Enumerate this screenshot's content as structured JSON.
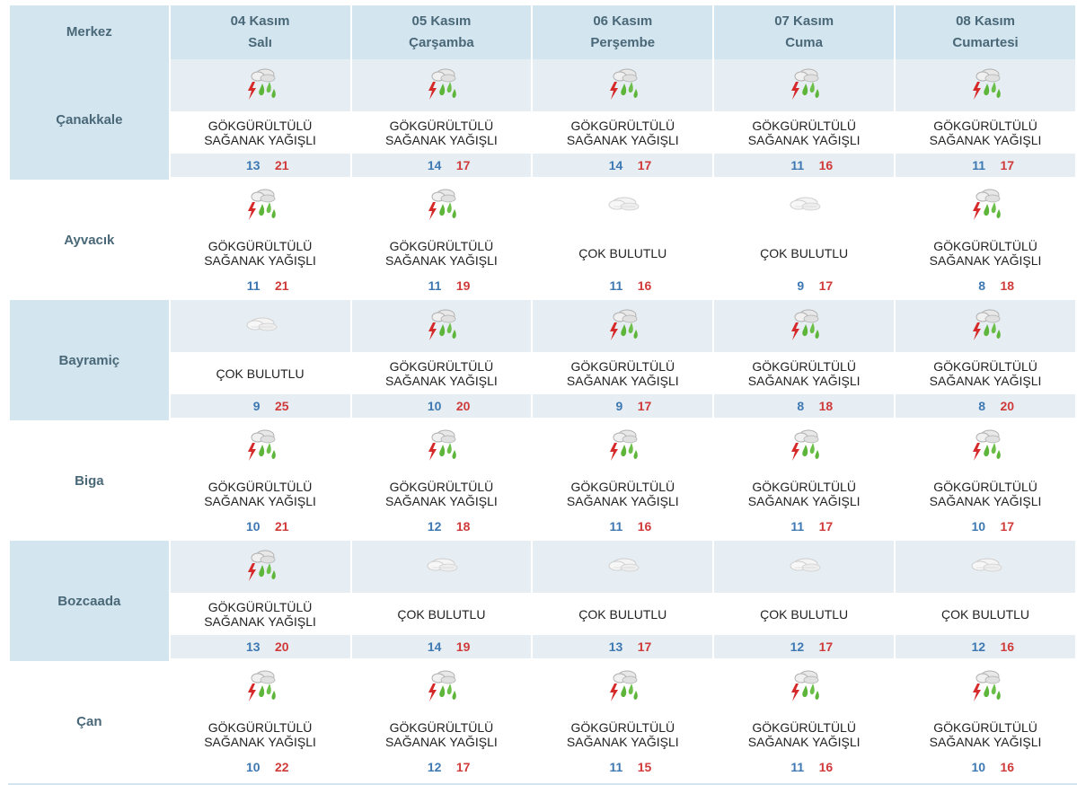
{
  "header": {
    "center_label": "Merkez",
    "days": [
      {
        "date": "04 Kasım",
        "weekday": "Salı"
      },
      {
        "date": "05 Kasım",
        "weekday": "Çarşamba"
      },
      {
        "date": "06 Kasım",
        "weekday": "Perşembe"
      },
      {
        "date": "07 Kasım",
        "weekday": "Cuma"
      },
      {
        "date": "08 Kasım",
        "weekday": "Cumartesi"
      }
    ]
  },
  "conditions": {
    "storm": {
      "line1": "GÖKGÜRÜLTÜLÜ",
      "line2": "SAĞANAK YAĞIŞLI",
      "icon": "thunderstorm-rain-icon"
    },
    "cloudy": {
      "line1": "ÇOK BULUTLU",
      "line2": "",
      "icon": "cloudy-icon"
    }
  },
  "colors": {
    "header_bg": "#d3e5ef",
    "min_temp": "#3e78b2",
    "max_temp": "#d03a3a"
  },
  "rows": [
    {
      "city": "Çanakkale",
      "days": [
        {
          "cond": "storm",
          "min": "13",
          "max": "21"
        },
        {
          "cond": "storm",
          "min": "14",
          "max": "17"
        },
        {
          "cond": "storm",
          "min": "14",
          "max": "17"
        },
        {
          "cond": "storm",
          "min": "11",
          "max": "16"
        },
        {
          "cond": "storm",
          "min": "11",
          "max": "17"
        }
      ]
    },
    {
      "city": "Ayvacık",
      "days": [
        {
          "cond": "storm",
          "min": "11",
          "max": "21"
        },
        {
          "cond": "storm",
          "min": "11",
          "max": "19"
        },
        {
          "cond": "cloudy",
          "min": "11",
          "max": "16"
        },
        {
          "cond": "cloudy",
          "min": "9",
          "max": "17"
        },
        {
          "cond": "storm",
          "min": "8",
          "max": "18"
        }
      ]
    },
    {
      "city": "Bayramiç",
      "days": [
        {
          "cond": "cloudy",
          "min": "9",
          "max": "25"
        },
        {
          "cond": "storm",
          "min": "10",
          "max": "20"
        },
        {
          "cond": "storm",
          "min": "9",
          "max": "17"
        },
        {
          "cond": "storm",
          "min": "8",
          "max": "18"
        },
        {
          "cond": "storm",
          "min": "8",
          "max": "20"
        }
      ]
    },
    {
      "city": "Biga",
      "days": [
        {
          "cond": "storm",
          "min": "10",
          "max": "21"
        },
        {
          "cond": "storm",
          "min": "12",
          "max": "18"
        },
        {
          "cond": "storm",
          "min": "11",
          "max": "16"
        },
        {
          "cond": "storm",
          "min": "11",
          "max": "17"
        },
        {
          "cond": "storm",
          "min": "10",
          "max": "17"
        }
      ]
    },
    {
      "city": "Bozcaada",
      "days": [
        {
          "cond": "storm",
          "min": "13",
          "max": "20"
        },
        {
          "cond": "cloudy",
          "min": "14",
          "max": "19"
        },
        {
          "cond": "cloudy",
          "min": "13",
          "max": "17"
        },
        {
          "cond": "cloudy",
          "min": "12",
          "max": "17"
        },
        {
          "cond": "cloudy",
          "min": "12",
          "max": "16"
        }
      ]
    },
    {
      "city": "Çan",
      "days": [
        {
          "cond": "storm",
          "min": "10",
          "max": "22"
        },
        {
          "cond": "storm",
          "min": "12",
          "max": "17"
        },
        {
          "cond": "storm",
          "min": "11",
          "max": "15"
        },
        {
          "cond": "storm",
          "min": "11",
          "max": "16"
        },
        {
          "cond": "storm",
          "min": "10",
          "max": "16"
        }
      ]
    }
  ]
}
